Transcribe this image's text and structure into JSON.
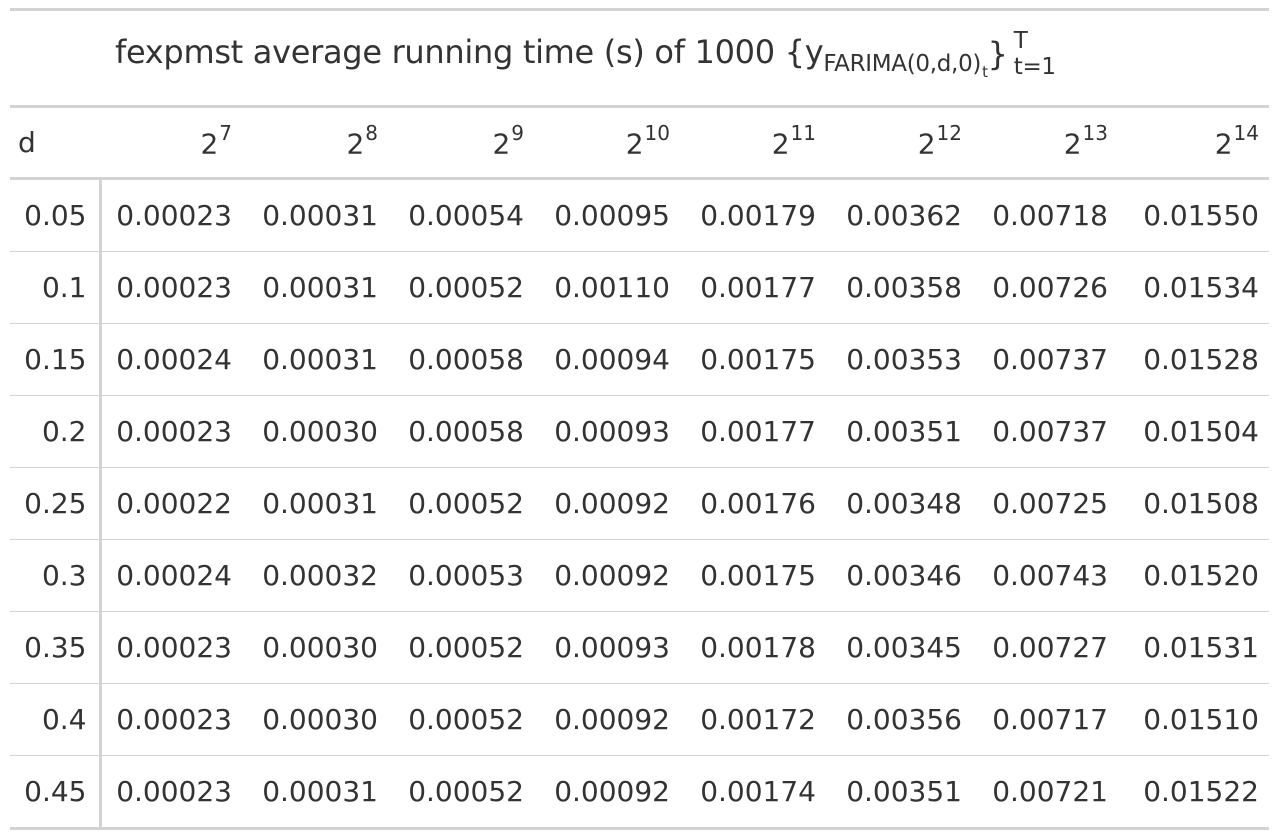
{
  "chart_data": {
    "type": "table",
    "title": {
      "prefix": "fexpmst average running time (s) of 1000 {y",
      "subscript": "FARIMA(0,d,0)",
      "subsubscript": "t",
      "close": "}",
      "superscript": "T",
      "lower": "t=1"
    },
    "stub_header": "d",
    "columns": [
      {
        "base": "2",
        "exp": "7"
      },
      {
        "base": "2",
        "exp": "8"
      },
      {
        "base": "2",
        "exp": "9"
      },
      {
        "base": "2",
        "exp": "10"
      },
      {
        "base": "2",
        "exp": "11"
      },
      {
        "base": "2",
        "exp": "12"
      },
      {
        "base": "2",
        "exp": "13"
      },
      {
        "base": "2",
        "exp": "14"
      }
    ],
    "rows": [
      {
        "d": "0.05",
        "values": [
          "0.00023",
          "0.00031",
          "0.00054",
          "0.00095",
          "0.00179",
          "0.00362",
          "0.00718",
          "0.01550"
        ]
      },
      {
        "d": "0.1",
        "values": [
          "0.00023",
          "0.00031",
          "0.00052",
          "0.00110",
          "0.00177",
          "0.00358",
          "0.00726",
          "0.01534"
        ]
      },
      {
        "d": "0.15",
        "values": [
          "0.00024",
          "0.00031",
          "0.00058",
          "0.00094",
          "0.00175",
          "0.00353",
          "0.00737",
          "0.01528"
        ]
      },
      {
        "d": "0.2",
        "values": [
          "0.00023",
          "0.00030",
          "0.00058",
          "0.00093",
          "0.00177",
          "0.00351",
          "0.00737",
          "0.01504"
        ]
      },
      {
        "d": "0.25",
        "values": [
          "0.00022",
          "0.00031",
          "0.00052",
          "0.00092",
          "0.00176",
          "0.00348",
          "0.00725",
          "0.01508"
        ]
      },
      {
        "d": "0.3",
        "values": [
          "0.00024",
          "0.00032",
          "0.00053",
          "0.00092",
          "0.00175",
          "0.00346",
          "0.00743",
          "0.01520"
        ]
      },
      {
        "d": "0.35",
        "values": [
          "0.00023",
          "0.00030",
          "0.00052",
          "0.00093",
          "0.00178",
          "0.00345",
          "0.00727",
          "0.01531"
        ]
      },
      {
        "d": "0.4",
        "values": [
          "0.00023",
          "0.00030",
          "0.00052",
          "0.00092",
          "0.00172",
          "0.00356",
          "0.00717",
          "0.01510"
        ]
      },
      {
        "d": "0.45",
        "values": [
          "0.00023",
          "0.00031",
          "0.00052",
          "0.00092",
          "0.00174",
          "0.00351",
          "0.00721",
          "0.01522"
        ]
      }
    ],
    "colors": {
      "text": "#333333",
      "rule": "#d3d3d3",
      "background": "#ffffff"
    }
  }
}
